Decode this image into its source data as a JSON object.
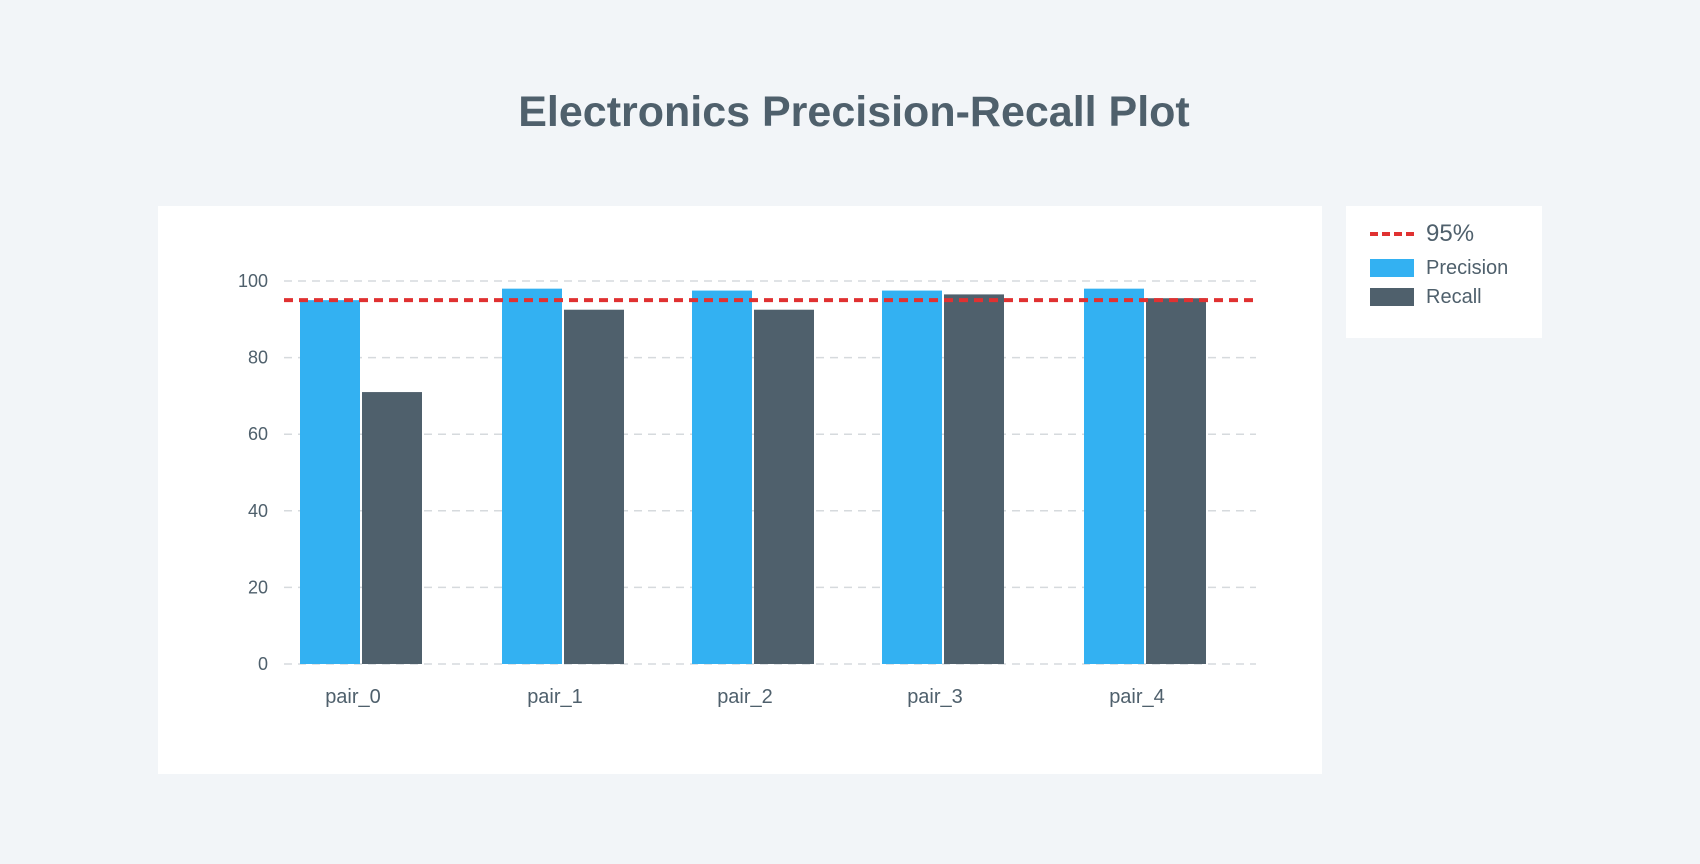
{
  "chart_data": {
    "type": "bar",
    "title": "Electronics Precision-Recall Plot",
    "xlabel": "",
    "ylabel": "",
    "ylim": [
      0,
      100
    ],
    "yticks": [
      0,
      20,
      40,
      60,
      80,
      100
    ],
    "categories": [
      "pair_0",
      "pair_1",
      "pair_2",
      "pair_3",
      "pair_4"
    ],
    "series": [
      {
        "name": "Precision",
        "color": "#33b1f2",
        "values": [
          95,
          98,
          97.5,
          97.5,
          98
        ]
      },
      {
        "name": "Recall",
        "color": "#4f606c",
        "values": [
          71,
          92.5,
          92.5,
          96.5,
          95.5
        ]
      }
    ],
    "reference_line": {
      "name": "95%",
      "value": 95,
      "color": "#e03131",
      "style": "dashed"
    },
    "grid": true,
    "legend_position": "right"
  }
}
